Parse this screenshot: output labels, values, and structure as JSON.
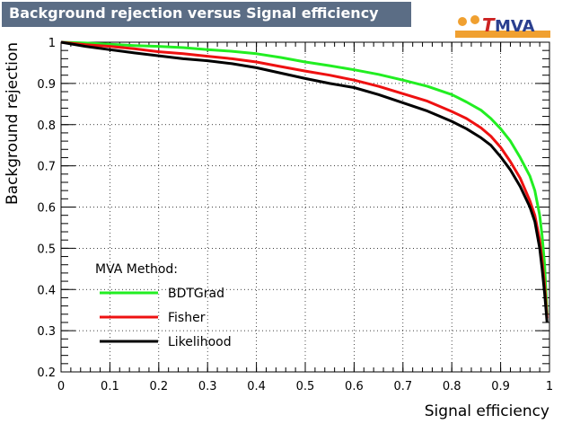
{
  "title": "Background rejection versus Signal efficiency",
  "logo": {
    "name": "tmva-logo",
    "lead_letter": "T",
    "rest_letters": "MVA",
    "accent_color": "#f0a030",
    "lead_color": "#cc2222",
    "text_color": "#2a3f8f"
  },
  "chart_data": {
    "type": "line",
    "xlabel": "Signal efficiency",
    "ylabel": "Background rejection",
    "xlim": [
      0,
      1
    ],
    "ylim": [
      0.2,
      1
    ],
    "x_ticks": [
      "0",
      "0.1",
      "0.2",
      "0.3",
      "0.4",
      "0.5",
      "0.6",
      "0.7",
      "0.8",
      "0.9",
      "1"
    ],
    "y_ticks": [
      "0.2",
      "0.3",
      "0.4",
      "0.5",
      "0.6",
      "0.7",
      "0.8",
      "0.9",
      "1"
    ],
    "grid": true,
    "legend": {
      "title": "MVA Method:",
      "placement": "bottom-left"
    },
    "series": [
      {
        "name": "BDTGrad",
        "color": "#22ee22",
        "points": [
          [
            0,
            1
          ],
          [
            0.05,
            0.998
          ],
          [
            0.1,
            0.995
          ],
          [
            0.15,
            0.992
          ],
          [
            0.2,
            0.99
          ],
          [
            0.25,
            0.987
          ],
          [
            0.3,
            0.982
          ],
          [
            0.35,
            0.978
          ],
          [
            0.4,
            0.972
          ],
          [
            0.45,
            0.963
          ],
          [
            0.5,
            0.952
          ],
          [
            0.55,
            0.943
          ],
          [
            0.6,
            0.933
          ],
          [
            0.65,
            0.922
          ],
          [
            0.7,
            0.908
          ],
          [
            0.75,
            0.893
          ],
          [
            0.8,
            0.873
          ],
          [
            0.83,
            0.855
          ],
          [
            0.86,
            0.835
          ],
          [
            0.88,
            0.815
          ],
          [
            0.9,
            0.79
          ],
          [
            0.92,
            0.76
          ],
          [
            0.94,
            0.72
          ],
          [
            0.96,
            0.675
          ],
          [
            0.97,
            0.64
          ],
          [
            0.98,
            0.58
          ],
          [
            0.985,
            0.53
          ],
          [
            0.99,
            0.46
          ],
          [
            0.995,
            0.34
          ]
        ]
      },
      {
        "name": "Fisher",
        "color": "#ee1111",
        "points": [
          [
            0,
            1
          ],
          [
            0.05,
            0.994
          ],
          [
            0.1,
            0.99
          ],
          [
            0.15,
            0.984
          ],
          [
            0.2,
            0.977
          ],
          [
            0.25,
            0.972
          ],
          [
            0.3,
            0.966
          ],
          [
            0.35,
            0.96
          ],
          [
            0.4,
            0.952
          ],
          [
            0.45,
            0.941
          ],
          [
            0.5,
            0.93
          ],
          [
            0.55,
            0.92
          ],
          [
            0.6,
            0.908
          ],
          [
            0.65,
            0.893
          ],
          [
            0.7,
            0.875
          ],
          [
            0.75,
            0.857
          ],
          [
            0.8,
            0.832
          ],
          [
            0.83,
            0.815
          ],
          [
            0.86,
            0.792
          ],
          [
            0.88,
            0.772
          ],
          [
            0.9,
            0.745
          ],
          [
            0.92,
            0.71
          ],
          [
            0.94,
            0.67
          ],
          [
            0.96,
            0.615
          ],
          [
            0.97,
            0.58
          ],
          [
            0.98,
            0.52
          ],
          [
            0.985,
            0.47
          ],
          [
            0.99,
            0.41
          ],
          [
            0.995,
            0.33
          ]
        ]
      },
      {
        "name": "Likelihood",
        "color": "#000000",
        "points": [
          [
            0,
            1
          ],
          [
            0.05,
            0.99
          ],
          [
            0.1,
            0.982
          ],
          [
            0.15,
            0.974
          ],
          [
            0.2,
            0.967
          ],
          [
            0.25,
            0.96
          ],
          [
            0.3,
            0.955
          ],
          [
            0.35,
            0.948
          ],
          [
            0.4,
            0.938
          ],
          [
            0.45,
            0.925
          ],
          [
            0.5,
            0.912
          ],
          [
            0.55,
            0.9
          ],
          [
            0.6,
            0.89
          ],
          [
            0.65,
            0.873
          ],
          [
            0.7,
            0.853
          ],
          [
            0.75,
            0.833
          ],
          [
            0.8,
            0.808
          ],
          [
            0.83,
            0.79
          ],
          [
            0.86,
            0.768
          ],
          [
            0.88,
            0.75
          ],
          [
            0.9,
            0.722
          ],
          [
            0.92,
            0.69
          ],
          [
            0.94,
            0.65
          ],
          [
            0.96,
            0.6
          ],
          [
            0.97,
            0.565
          ],
          [
            0.98,
            0.5
          ],
          [
            0.985,
            0.45
          ],
          [
            0.99,
            0.39
          ],
          [
            0.995,
            0.32
          ]
        ]
      }
    ]
  }
}
